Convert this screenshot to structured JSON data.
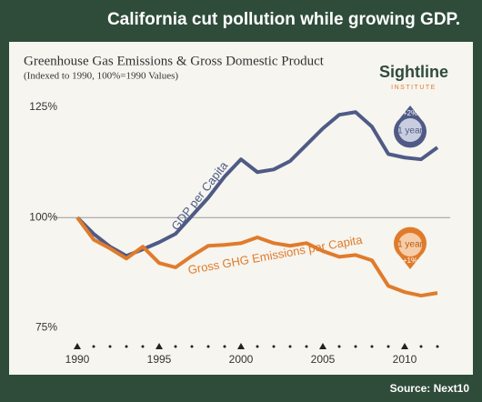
{
  "header": {
    "title": "California cut pollution while growing GDP.",
    "source": "Source: Next10",
    "logo_name": "Sightline",
    "logo_sub": "INSTITUTE"
  },
  "chart_data": {
    "type": "line",
    "title": "Greenhouse Gas Emissions & Gross Domestic Product",
    "subtitle": "(Indexed to 1990, 100%=1990 Values)",
    "x": [
      1990,
      1991,
      1992,
      1993,
      1994,
      1995,
      1996,
      1997,
      1998,
      1999,
      2000,
      2001,
      2002,
      2003,
      2004,
      2005,
      2006,
      2007,
      2008,
      2009,
      2010,
      2011,
      2012
    ],
    "series": [
      {
        "name": "GDP per Capita",
        "color": "#4f5b86",
        "values": [
          100,
          96.3,
          93.4,
          91.3,
          92.8,
          94.4,
          96.3,
          100.4,
          104.5,
          109.3,
          113.2,
          110.3,
          110.9,
          112.8,
          116.5,
          120.2,
          123.3,
          123.9,
          120.6,
          114.4,
          113.6,
          113.2,
          115.9
        ]
      },
      {
        "name": "Gross GHG Emissions per Capita",
        "color": "#e07b2c",
        "values": [
          100,
          95,
          93,
          90.7,
          93.4,
          89.7,
          88.7,
          91.3,
          93.6,
          93.8,
          94.2,
          95.5,
          94.2,
          93.6,
          94.2,
          92.4,
          91.1,
          91.5,
          90.3,
          84.5,
          83.1,
          82.3,
          82.9
        ]
      }
    ],
    "xlim": [
      1989,
      2013
    ],
    "xticks": [
      1990,
      1995,
      2000,
      2005,
      2010
    ],
    "ylim": [
      72,
      127
    ],
    "yticks": [
      {
        "value": 75,
        "label": "75%"
      },
      {
        "value": 100,
        "label": "100%"
      },
      {
        "value": 125,
        "label": "125%"
      }
    ],
    "grid_at": {
      "value": 100
    },
    "annotations": {
      "gdp_badge_top": "+2%",
      "gdp_badge_bottom": "1 year",
      "ghg_badge_top": "1 year",
      "ghg_badge_bottom": "+1%"
    }
  }
}
